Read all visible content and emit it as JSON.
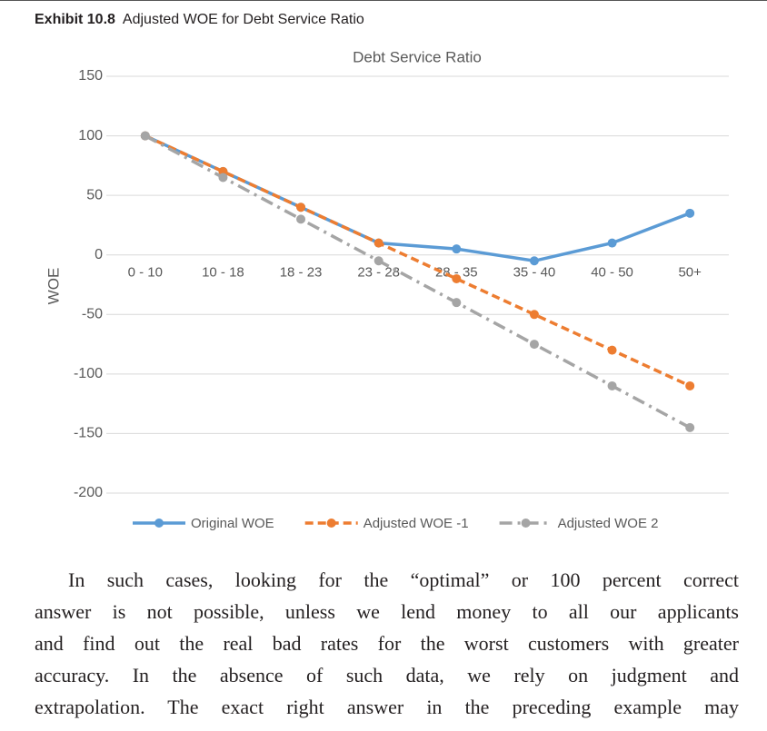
{
  "header": {
    "label": "Exhibit 10.8",
    "title": "Adjusted WOE for Debt Service Ratio"
  },
  "chart_data": {
    "type": "line",
    "title": "Debt Service Ratio",
    "y_label": "WOE",
    "categories": [
      "0 - 10",
      "10 - 18",
      "18 - 23",
      "23 - 28",
      "28 - 35",
      "35 - 40",
      "40 - 50",
      "50+"
    ],
    "series": [
      {
        "name": "Original WOE",
        "color": "#5b9bd5",
        "dash": "solid",
        "values": [
          100,
          70,
          40,
          10,
          5,
          -5,
          10,
          35
        ]
      },
      {
        "name": "Adjusted WOE -1",
        "color": "#ed7d31",
        "dash": "dashed",
        "values": [
          100,
          70,
          40,
          10,
          -20,
          -50,
          -80,
          -110
        ]
      },
      {
        "name": "Adjusted WOE 2",
        "color": "#a5a5a5",
        "dash": "dashdot",
        "values": [
          100,
          65,
          30,
          -5,
          -40,
          -75,
          -110,
          -145
        ]
      }
    ],
    "ylim": [
      -200,
      150
    ],
    "yticks": [
      -200,
      -150,
      -100,
      -50,
      0,
      50,
      100,
      150
    ],
    "grid": true,
    "legend": "bottom"
  },
  "body": {
    "lines": [
      "In such cases, looking for the “optimal” or 100 percent correct",
      "answer is not possible, unless we lend money to all our applicants",
      "and find out the real bad rates for the worst customers with greater",
      "accuracy. In the absence of such data, we rely on judgment and",
      "extrapolation. The exact right answer in the preceding example may"
    ]
  }
}
